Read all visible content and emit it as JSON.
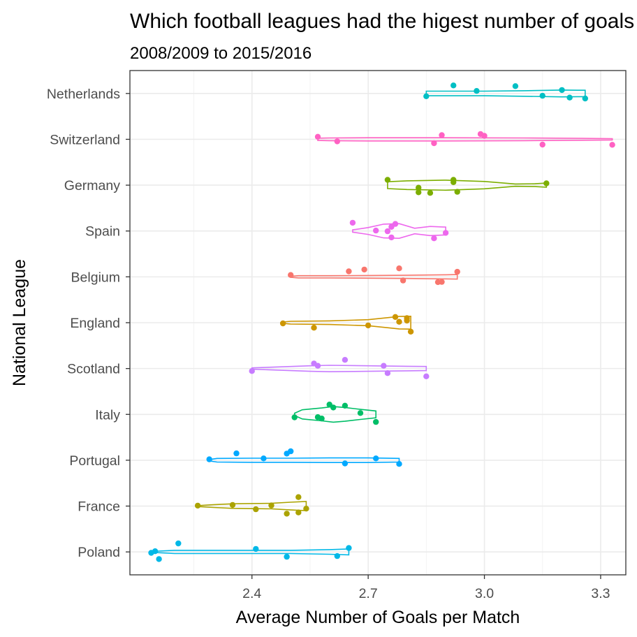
{
  "chart_data": {
    "type": "violin",
    "title": "Which football leagues had the higest number of goals per match?",
    "subtitle": "2008/2009 to 2015/2016",
    "xlabel": "Average Number of Goals per Match",
    "ylabel": "National League",
    "xlim": [
      2.085,
      3.365
    ],
    "xticks": [
      2.4,
      2.7,
      3.0,
      3.3
    ],
    "xtick_labels": [
      "2.4",
      "2.7",
      "3.0",
      "3.3"
    ],
    "grid": true,
    "legend": "none",
    "categories": [
      "Poland",
      "France",
      "Portugal",
      "Italy",
      "Scotland",
      "England",
      "Belgium",
      "Spain",
      "Germany",
      "Switzerland",
      "Netherlands"
    ],
    "series": [
      {
        "category": "Poland",
        "color": "#00B8E7",
        "points": [
          [
            2.21,
            0.37
          ],
          [
            2.15,
            0.03
          ],
          [
            2.41,
            0.13
          ],
          [
            2.65,
            0.17
          ],
          [
            2.14,
            -0.04
          ],
          [
            2.49,
            -0.21
          ],
          [
            2.62,
            -0.18
          ],
          [
            2.16,
            -0.31
          ]
        ],
        "violin": [
          [
            2.14,
            0.02
          ],
          [
            2.2,
            0.07
          ],
          [
            2.3,
            0.07
          ],
          [
            2.4,
            0.07
          ],
          [
            2.5,
            0.07
          ],
          [
            2.6,
            0.1
          ],
          [
            2.65,
            0.13
          ]
        ]
      },
      {
        "category": "France",
        "color": "#ABA300",
        "points": [
          [
            2.52,
            0.39
          ],
          [
            2.35,
            0.05
          ],
          [
            2.45,
            0.03
          ],
          [
            2.41,
            -0.14
          ],
          [
            2.26,
            0.02
          ],
          [
            2.54,
            -0.11
          ],
          [
            2.52,
            -0.28
          ],
          [
            2.49,
            -0.33
          ]
        ],
        "violin": [
          [
            2.26,
            0.02
          ],
          [
            2.3,
            0.06
          ],
          [
            2.35,
            0.1
          ],
          [
            2.4,
            0.11
          ],
          [
            2.45,
            0.12
          ],
          [
            2.5,
            0.17
          ],
          [
            2.54,
            0.2
          ]
        ]
      },
      {
        "category": "Portugal",
        "color": "#00A9FF",
        "points": [
          [
            2.36,
            0.3
          ],
          [
            2.5,
            0.39
          ],
          [
            2.49,
            0.29
          ],
          [
            2.29,
            0.04
          ],
          [
            2.43,
            0.08
          ],
          [
            2.72,
            0.08
          ],
          [
            2.78,
            -0.16
          ],
          [
            2.64,
            -0.14
          ]
        ],
        "violin": [
          [
            2.29,
            0.03
          ],
          [
            2.31,
            0.08
          ],
          [
            2.4,
            0.09
          ],
          [
            2.5,
            0.09
          ],
          [
            2.6,
            0.1
          ],
          [
            2.7,
            0.1
          ],
          [
            2.78,
            0.08
          ]
        ]
      },
      {
        "category": "Italy",
        "color": "#00BE67",
        "points": [
          [
            2.6,
            0.43
          ],
          [
            2.64,
            0.38
          ],
          [
            2.61,
            0.3
          ],
          [
            2.68,
            0.06
          ],
          [
            2.57,
            -0.12
          ],
          [
            2.58,
            -0.18
          ],
          [
            2.51,
            -0.13
          ],
          [
            2.72,
            -0.33
          ]
        ],
        "violin": [
          [
            2.51,
            0.05
          ],
          [
            2.53,
            0.2
          ],
          [
            2.58,
            0.28
          ],
          [
            2.61,
            0.34
          ],
          [
            2.64,
            0.3
          ],
          [
            2.68,
            0.22
          ],
          [
            2.72,
            0.15
          ]
        ]
      },
      {
        "category": "Scotland",
        "color": "#C77CFF",
        "points": [
          [
            2.64,
            0.38
          ],
          [
            2.56,
            0.22
          ],
          [
            2.57,
            0.12
          ],
          [
            2.74,
            0.12
          ],
          [
            2.4,
            -0.11
          ],
          [
            2.75,
            -0.2
          ],
          [
            2.85,
            -0.34
          ]
        ],
        "violin": [
          [
            2.4,
            0.03
          ],
          [
            2.45,
            0.06
          ],
          [
            2.55,
            0.12
          ],
          [
            2.6,
            0.14
          ],
          [
            2.7,
            0.12
          ],
          [
            2.8,
            0.1
          ],
          [
            2.85,
            0.09
          ]
        ]
      },
      {
        "category": "England",
        "color": "#CD9600",
        "points": [
          [
            2.77,
            0.25
          ],
          [
            2.8,
            0.2
          ],
          [
            2.8,
            0.09
          ],
          [
            2.78,
            0.04
          ],
          [
            2.48,
            -0.03
          ],
          [
            2.7,
            -0.12
          ],
          [
            2.56,
            -0.22
          ],
          [
            2.81,
            -0.39
          ]
        ],
        "violin": [
          [
            2.48,
            0.03
          ],
          [
            2.5,
            0.06
          ],
          [
            2.6,
            0.08
          ],
          [
            2.7,
            0.13
          ],
          [
            2.75,
            0.22
          ],
          [
            2.78,
            0.27
          ],
          [
            2.81,
            0.28
          ]
        ]
      },
      {
        "category": "Belgium",
        "color": "#F8766D",
        "points": [
          [
            2.78,
            0.37
          ],
          [
            2.69,
            0.32
          ],
          [
            2.65,
            0.24
          ],
          [
            2.93,
            0.22
          ],
          [
            2.5,
            0.08
          ],
          [
            2.79,
            -0.16
          ],
          [
            2.89,
            -0.22
          ],
          [
            2.88,
            -0.23
          ]
        ],
        "violin": [
          [
            2.5,
            0.02
          ],
          [
            2.52,
            0.05
          ],
          [
            2.6,
            0.05
          ],
          [
            2.7,
            0.06
          ],
          [
            2.8,
            0.07
          ],
          [
            2.9,
            0.09
          ],
          [
            2.93,
            0.1
          ]
        ]
      },
      {
        "category": "Spain",
        "color": "#ED68ED",
        "points": [
          [
            2.66,
            0.36
          ],
          [
            2.77,
            0.31
          ],
          [
            2.76,
            0.18
          ],
          [
            2.72,
            0.02
          ],
          [
            2.75,
            -0.01
          ],
          [
            2.9,
            -0.08
          ],
          [
            2.76,
            -0.28
          ],
          [
            2.87,
            -0.32
          ]
        ],
        "violin": [
          [
            2.66,
            0.05
          ],
          [
            2.7,
            0.15
          ],
          [
            2.74,
            0.3
          ],
          [
            2.78,
            0.32
          ],
          [
            2.82,
            0.12
          ],
          [
            2.86,
            0.2
          ],
          [
            2.9,
            0.17
          ]
        ]
      },
      {
        "category": "Germany",
        "color": "#7CAE00",
        "points": [
          [
            2.75,
            0.23
          ],
          [
            2.92,
            0.23
          ],
          [
            2.92,
            0.13
          ],
          [
            3.16,
            0.08
          ],
          [
            2.83,
            -0.11
          ],
          [
            2.83,
            -0.31
          ],
          [
            2.86,
            -0.34
          ],
          [
            2.93,
            -0.29
          ]
        ],
        "violin": [
          [
            2.75,
            0.15
          ],
          [
            2.8,
            0.19
          ],
          [
            2.9,
            0.22
          ],
          [
            3.0,
            0.16
          ],
          [
            3.08,
            0.05
          ],
          [
            3.13,
            0.06
          ],
          [
            3.16,
            0.09
          ]
        ]
      },
      {
        "category": "Switzerland",
        "color": "#FF61C3",
        "points": [
          [
            2.99,
            0.23
          ],
          [
            2.89,
            0.18
          ],
          [
            3.0,
            0.15
          ],
          [
            2.57,
            0.11
          ],
          [
            2.62,
            -0.09
          ],
          [
            2.87,
            -0.17
          ],
          [
            3.15,
            -0.23
          ],
          [
            3.33,
            -0.24
          ]
        ],
        "violin": [
          [
            2.57,
            0.05
          ],
          [
            2.6,
            0.06
          ],
          [
            2.7,
            0.07
          ],
          [
            2.9,
            0.07
          ],
          [
            3.1,
            0.06
          ],
          [
            3.25,
            0.04
          ],
          [
            3.33,
            0.03
          ]
        ]
      },
      {
        "category": "Netherlands",
        "color": "#00BFC4",
        "points": [
          [
            2.92,
            0.35
          ],
          [
            3.08,
            0.32
          ],
          [
            2.98,
            0.11
          ],
          [
            3.2,
            0.15
          ],
          [
            2.85,
            -0.12
          ],
          [
            3.15,
            -0.1
          ],
          [
            3.22,
            -0.18
          ],
          [
            3.26,
            -0.22
          ]
        ],
        "violin": [
          [
            2.85,
            0.1
          ],
          [
            2.9,
            0.1
          ],
          [
            3.0,
            0.1
          ],
          [
            3.1,
            0.12
          ],
          [
            3.2,
            0.15
          ],
          [
            3.24,
            0.14
          ],
          [
            3.26,
            0.14
          ]
        ]
      }
    ]
  }
}
